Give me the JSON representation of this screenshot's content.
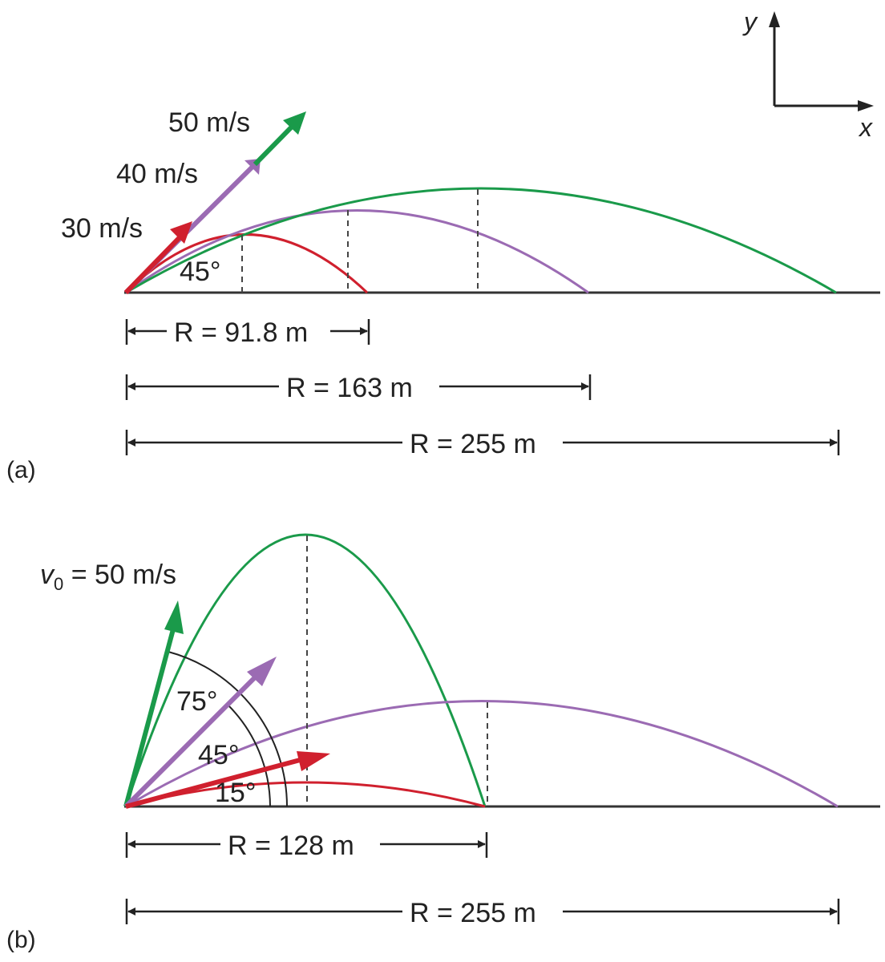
{
  "axes": {
    "y_label": "y",
    "x_label": "x"
  },
  "panel_a": {
    "label": "(a)",
    "angle_label": "45°",
    "speed_labels": [
      "50 m/s",
      "40 m/s",
      "30 m/s"
    ],
    "ranges": [
      "R = 91.8 m",
      "R = 163 m",
      "R = 255 m"
    ],
    "colors": {
      "30": "#d0202e",
      "40": "#9b6bb3",
      "50": "#1a9a4a"
    }
  },
  "panel_b": {
    "label": "(b)",
    "v0_label": "v",
    "v0_sub": "0",
    "v0_rest": " = 50 m/s",
    "angle_labels": [
      "75°",
      "45°",
      "15°"
    ],
    "ranges": [
      "R = 128 m",
      "R = 255 m"
    ]
  }
}
